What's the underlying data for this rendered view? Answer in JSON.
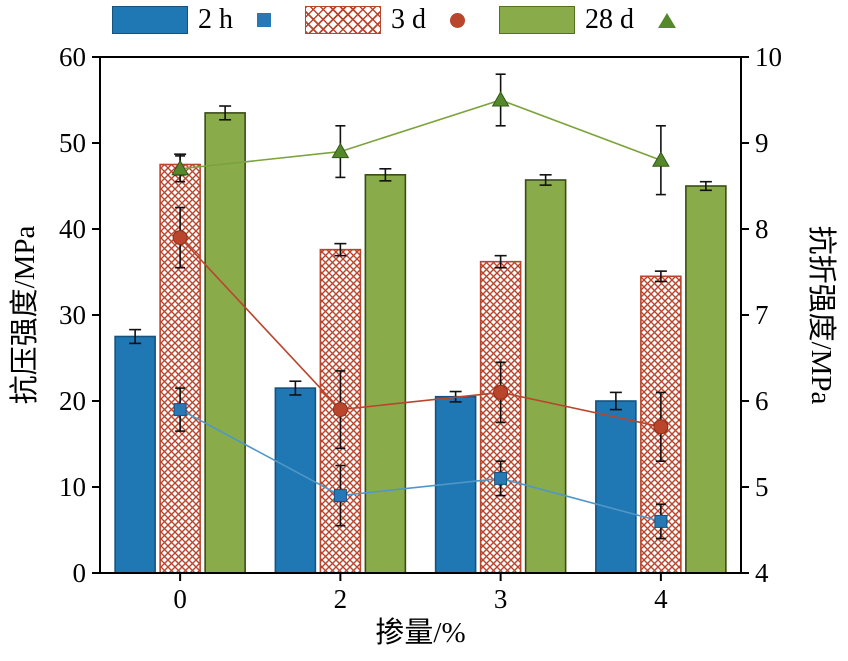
{
  "chart_data": {
    "type": "bar",
    "subtype": "grouped-bars-with-lines-dual-axis",
    "categories": [
      "0",
      "2",
      "3",
      "4"
    ],
    "xlabel": "掺量/%",
    "left_axis": {
      "label": "抗压强度/MPa",
      "min": 0,
      "max": 60,
      "ticks": [
        0,
        10,
        20,
        30,
        40,
        50,
        60
      ]
    },
    "right_axis": {
      "label": "抗折强度/MPa",
      "min": 4,
      "max": 10,
      "ticks": [
        4,
        5,
        6,
        7,
        8,
        9,
        10
      ]
    },
    "grid": "off",
    "legend_position": "top",
    "bar_series": [
      {
        "name": "2 h",
        "axis": "left",
        "style": "solid",
        "color": "#1f77b4",
        "edge": "#15537f",
        "values": [
          27.5,
          21.5,
          20.5,
          20.0
        ],
        "errors": [
          0.8,
          0.8,
          0.6,
          1.0
        ]
      },
      {
        "name": "3 d",
        "axis": "left",
        "style": "crosshatch",
        "color": "#b9452c",
        "edge": "#b9452c",
        "values": [
          47.5,
          37.6,
          36.2,
          34.5
        ],
        "errors": [
          1.2,
          0.7,
          0.7,
          0.6
        ]
      },
      {
        "name": "28 d",
        "axis": "left",
        "style": "solid",
        "color": "#8aab4a",
        "edge": "#3a4d14",
        "values": [
          53.5,
          46.3,
          45.7,
          45.0
        ],
        "errors": [
          0.8,
          0.7,
          0.6,
          0.5
        ]
      }
    ],
    "line_series": [
      {
        "name": "2 h",
        "axis": "right",
        "marker": "square",
        "line_color": "#4f97c7",
        "marker_color": "#2878b5",
        "marker_edge": "#15537f",
        "values": [
          5.9,
          4.9,
          5.1,
          4.6
        ],
        "errors": [
          0.25,
          0.35,
          0.2,
          0.2
        ]
      },
      {
        "name": "3 d",
        "axis": "right",
        "marker": "circle",
        "line_color": "#b9452c",
        "marker_color": "#b9452c",
        "marker_edge": "#8d3018",
        "values": [
          7.9,
          5.9,
          6.1,
          5.7
        ],
        "errors": [
          0.35,
          0.45,
          0.35,
          0.4
        ]
      },
      {
        "name": "28 d",
        "axis": "right",
        "marker": "triangle",
        "line_color": "#7ba33c",
        "marker_color": "#55882b",
        "marker_edge": "#33571a",
        "values": [
          8.7,
          8.9,
          9.5,
          8.8
        ],
        "errors": [
          0.15,
          0.3,
          0.3,
          0.4
        ]
      }
    ],
    "error_bar_color": "#111111"
  }
}
